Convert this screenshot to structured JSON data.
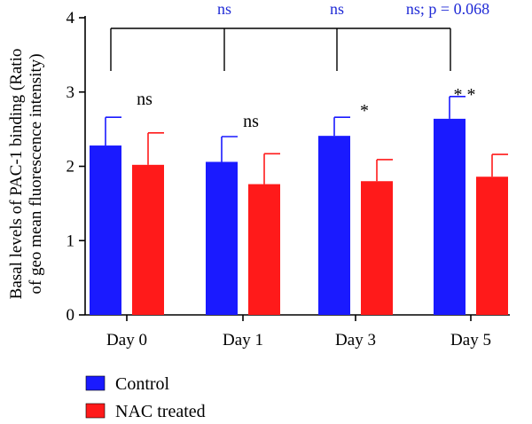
{
  "chart_data": {
    "type": "bar",
    "categories": [
      "Day 0",
      "Day 1",
      "Day 3",
      "Day 5"
    ],
    "series": [
      {
        "name": "Control",
        "color": "#1a1aff",
        "values": [
          2.28,
          2.06,
          2.41,
          2.64
        ],
        "errors": [
          0.38,
          0.34,
          0.25,
          0.3
        ]
      },
      {
        "name": "NAC treated",
        "color": "#ff1a1a",
        "values": [
          2.02,
          1.76,
          1.8,
          1.86
        ],
        "errors": [
          0.43,
          0.41,
          0.29,
          0.3
        ]
      }
    ],
    "ylabel_line1": "Basal levels of PAC-1 binding (Ratio",
    "ylabel_line2": "of geo mean fluorescence intensity)",
    "xlabel": "",
    "ylim": [
      0,
      4
    ],
    "yticks": [
      "0",
      "1",
      "2",
      "3",
      "4"
    ],
    "pair_annotations": [
      "ns",
      "ns",
      "*",
      "* *"
    ],
    "bracket_annotations": [
      {
        "text": "ns",
        "color": "#1f2ad6"
      },
      {
        "text": "ns",
        "color": "#1f2ad6"
      },
      {
        "text": "ns; p = 0.068",
        "color": "#1f2ad6"
      }
    ],
    "legend_position": "bottom-left"
  }
}
